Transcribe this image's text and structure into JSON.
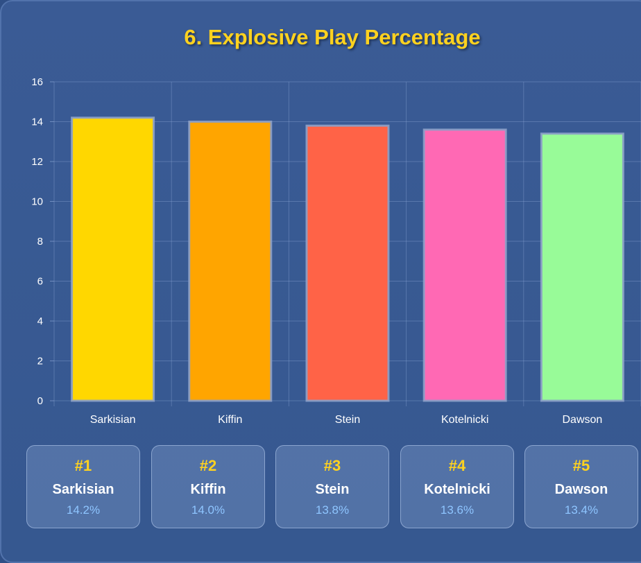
{
  "title": "6. Explosive Play Percentage",
  "chart_data": {
    "type": "bar",
    "categories": [
      "Sarkisian",
      "Kiffin",
      "Stein",
      "Kotelnicki",
      "Dawson"
    ],
    "values": [
      14.2,
      14.0,
      13.8,
      13.6,
      13.4
    ],
    "colors": [
      "#ffd700",
      "#ffa500",
      "#ff6347",
      "#ff69b4",
      "#98fb98"
    ],
    "ylim": [
      0,
      16
    ],
    "yticks": [
      "0",
      "2",
      "4",
      "6",
      "8",
      "10",
      "12",
      "14",
      "16"
    ],
    "grid": true
  },
  "cards": [
    {
      "rank": "#1",
      "name": "Sarkisian",
      "pct": "14.2%"
    },
    {
      "rank": "#2",
      "name": "Kiffin",
      "pct": "14.0%"
    },
    {
      "rank": "#3",
      "name": "Stein",
      "pct": "13.8%"
    },
    {
      "rank": "#4",
      "name": "Kotelnicki",
      "pct": "13.6%"
    },
    {
      "rank": "#5",
      "name": "Dawson",
      "pct": "13.4%"
    }
  ]
}
